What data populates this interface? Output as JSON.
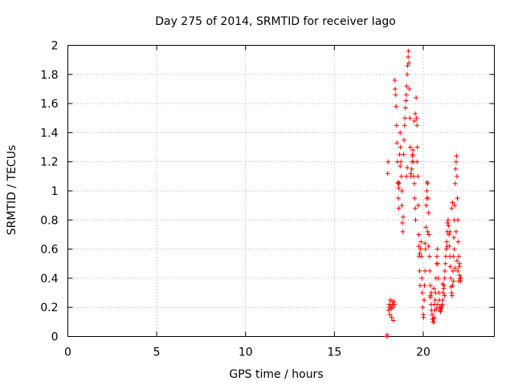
{
  "chart_data": {
    "type": "scatter",
    "title": "Day 275 of 2014, SRMTID for receiver Iago",
    "xlabel": "GPS time / hours",
    "ylabel": "SRMTID / TECUs",
    "xlim": [
      0,
      24
    ],
    "ylim": [
      0,
      2
    ],
    "xticks": [
      0,
      5,
      10,
      15,
      20
    ],
    "xtick_labels": [
      "0",
      "5",
      "10",
      "15",
      "20"
    ],
    "yticks": [
      0,
      0.2,
      0.4,
      0.6,
      0.8,
      1,
      1.2,
      1.4,
      1.6,
      1.8,
      2
    ],
    "ytick_labels": [
      "0",
      "0.2",
      "0.4",
      "0.6",
      "0.8",
      "1",
      "1.2",
      "1.4",
      "1.6",
      "1.8",
      "2"
    ],
    "grid": true,
    "marker": "plus",
    "color": "#ff0000",
    "series": [
      {
        "name": "SRMTID",
        "points": [
          [
            17.95,
            0.0
          ],
          [
            17.97,
            0.01
          ],
          [
            18.0,
            1.12
          ],
          [
            18.02,
            1.2
          ],
          [
            18.05,
            0.18
          ],
          [
            18.08,
            0.22
          ],
          [
            18.1,
            0.2
          ],
          [
            18.12,
            0.15
          ],
          [
            18.15,
            0.25
          ],
          [
            18.18,
            0.21
          ],
          [
            18.2,
            0.19
          ],
          [
            18.22,
            0.13
          ],
          [
            18.25,
            0.24
          ],
          [
            18.28,
            0.22
          ],
          [
            18.3,
            0.2
          ],
          [
            18.32,
            0.11
          ],
          [
            18.35,
            0.24
          ],
          [
            18.38,
            0.22
          ],
          [
            18.4,
            1.76
          ],
          [
            18.42,
            1.7
          ],
          [
            18.45,
            1.66
          ],
          [
            18.47,
            1.58
          ],
          [
            18.5,
            1.45
          ],
          [
            18.52,
            1.33
          ],
          [
            18.55,
            1.2
          ],
          [
            18.57,
            1.05
          ],
          [
            18.6,
            0.95
          ],
          [
            18.62,
            0.88
          ],
          [
            18.65,
            1.05
          ],
          [
            18.67,
            1.25
          ],
          [
            18.7,
            1.4
          ],
          [
            18.72,
            1.3
          ],
          [
            18.75,
            1.2
          ],
          [
            18.77,
            1.1
          ],
          [
            18.8,
            0.9
          ],
          [
            18.82,
            0.78
          ],
          [
            18.85,
            0.72
          ],
          [
            18.87,
            0.82
          ],
          [
            18.9,
            1.25
          ],
          [
            18.92,
            1.35
          ],
          [
            18.95,
            1.45
          ],
          [
            18.97,
            1.5
          ],
          [
            19.0,
            1.57
          ],
          [
            19.02,
            1.62
          ],
          [
            19.05,
            1.66
          ],
          [
            19.07,
            1.72
          ],
          [
            19.1,
            1.8
          ],
          [
            19.12,
            1.86
          ],
          [
            19.15,
            1.92
          ],
          [
            19.17,
            1.96
          ],
          [
            19.2,
            1.88
          ],
          [
            19.22,
            1.7
          ],
          [
            19.25,
            1.5
          ],
          [
            19.27,
            1.3
          ],
          [
            19.3,
            1.12
          ],
          [
            19.32,
            1.1
          ],
          [
            19.35,
            1.15
          ],
          [
            19.37,
            1.2
          ],
          [
            19.4,
            1.25
          ],
          [
            19.42,
            1.28
          ],
          [
            19.45,
            1.2
          ],
          [
            19.47,
            1.1
          ],
          [
            19.5,
            1.05
          ],
          [
            19.52,
            0.95
          ],
          [
            19.55,
            0.88
          ],
          [
            19.57,
            0.8
          ],
          [
            19.6,
            1.64
          ],
          [
            19.62,
            1.5
          ],
          [
            19.65,
            1.45
          ],
          [
            19.67,
            1.3
          ],
          [
            19.7,
            1.1
          ],
          [
            19.72,
            0.9
          ],
          [
            19.75,
            0.7
          ],
          [
            19.77,
            0.55
          ],
          [
            19.8,
            0.45
          ],
          [
            19.82,
            0.35
          ],
          [
            19.85,
            0.6
          ],
          [
            19.87,
            0.65
          ],
          [
            19.9,
            0.55
          ],
          [
            19.92,
            0.4
          ],
          [
            19.95,
            0.3
          ],
          [
            19.97,
            0.2
          ],
          [
            20.0,
            0.15
          ],
          [
            20.02,
            0.13
          ],
          [
            20.05,
            0.25
          ],
          [
            20.07,
            0.35
          ],
          [
            20.1,
            0.45
          ],
          [
            20.12,
            0.6
          ],
          [
            20.15,
            0.75
          ],
          [
            20.17,
            0.9
          ],
          [
            20.2,
            1.0
          ],
          [
            20.22,
            1.06
          ],
          [
            20.25,
            1.05
          ],
          [
            20.27,
            0.95
          ],
          [
            20.3,
            0.85
          ],
          [
            20.32,
            0.7
          ],
          [
            20.35,
            0.55
          ],
          [
            20.37,
            0.45
          ],
          [
            20.4,
            0.35
          ],
          [
            20.42,
            0.28
          ],
          [
            20.45,
            0.22
          ],
          [
            20.47,
            0.18
          ],
          [
            20.5,
            0.15
          ],
          [
            20.52,
            0.12
          ],
          [
            20.55,
            0.1
          ],
          [
            20.57,
            0.12
          ],
          [
            20.6,
            0.1
          ],
          [
            20.62,
            0.13
          ],
          [
            20.65,
            0.18
          ],
          [
            20.67,
            0.25
          ],
          [
            20.7,
            0.3
          ],
          [
            20.72,
            0.4
          ],
          [
            20.75,
            0.5
          ],
          [
            20.77,
            0.55
          ],
          [
            20.8,
            0.6
          ],
          [
            20.82,
            0.5
          ],
          [
            20.85,
            0.4
          ],
          [
            20.87,
            0.3
          ],
          [
            20.9,
            0.25
          ],
          [
            20.92,
            0.2
          ],
          [
            20.95,
            0.18
          ],
          [
            20.97,
            0.17
          ],
          [
            21.0,
            0.19
          ],
          [
            21.02,
            0.2
          ],
          [
            21.05,
            0.21
          ],
          [
            21.07,
            0.22
          ],
          [
            21.1,
            0.25
          ],
          [
            21.12,
            0.3
          ],
          [
            21.15,
            0.33
          ],
          [
            21.17,
            0.35
          ],
          [
            21.2,
            0.4
          ],
          [
            21.22,
            0.45
          ],
          [
            21.25,
            0.5
          ],
          [
            21.27,
            0.55
          ],
          [
            21.3,
            0.6
          ],
          [
            21.32,
            0.65
          ],
          [
            21.35,
            0.72
          ],
          [
            21.37,
            0.78
          ],
          [
            21.4,
            0.8
          ],
          [
            21.42,
            0.76
          ],
          [
            21.45,
            0.7
          ],
          [
            21.47,
            0.62
          ],
          [
            21.5,
            0.55
          ],
          [
            21.52,
            0.48
          ],
          [
            21.55,
            0.4
          ],
          [
            21.57,
            0.34
          ],
          [
            21.6,
            0.3
          ],
          [
            21.62,
            0.28
          ],
          [
            21.65,
            0.35
          ],
          [
            21.67,
            0.45
          ],
          [
            21.7,
            0.55
          ],
          [
            21.72,
            0.68
          ],
          [
            21.75,
            0.8
          ],
          [
            21.77,
            0.9
          ],
          [
            21.8,
            1.05
          ],
          [
            21.82,
            1.15
          ],
          [
            21.85,
            1.2
          ],
          [
            21.87,
            1.24
          ],
          [
            21.9,
            1.1
          ],
          [
            21.92,
            0.95
          ],
          [
            21.95,
            0.8
          ],
          [
            21.97,
            0.65
          ],
          [
            22.0,
            0.55
          ],
          [
            22.02,
            0.48
          ],
          [
            22.05,
            0.42
          ],
          [
            22.07,
            0.4
          ],
          [
            22.1,
            0.38
          ],
          [
            22.12,
            0.4
          ],
          [
            18.6,
            1.06
          ],
          [
            18.62,
            1.02
          ],
          [
            18.7,
            1.17
          ],
          [
            18.8,
            1.0
          ],
          [
            19.05,
            1.1
          ],
          [
            19.1,
            1.16
          ],
          [
            19.4,
            1.24
          ],
          [
            19.5,
            1.48
          ],
          [
            19.55,
            1.53
          ],
          [
            19.65,
            1.2
          ],
          [
            19.75,
            0.62
          ],
          [
            19.8,
            0.57
          ],
          [
            20.1,
            0.64
          ],
          [
            20.2,
            0.95
          ],
          [
            20.25,
            0.72
          ],
          [
            20.3,
            0.62
          ],
          [
            20.4,
            0.27
          ],
          [
            20.45,
            0.3
          ],
          [
            20.6,
            0.33
          ],
          [
            20.62,
            0.22
          ],
          [
            20.75,
            0.19
          ],
          [
            20.8,
            0.22
          ],
          [
            21.1,
            0.36
          ],
          [
            21.2,
            0.28
          ],
          [
            21.35,
            0.62
          ],
          [
            21.5,
            0.72
          ],
          [
            21.6,
            0.88
          ],
          [
            21.65,
            0.92
          ],
          [
            21.7,
            0.38
          ],
          [
            21.75,
            0.6
          ],
          [
            21.8,
            0.47
          ],
          [
            21.85,
            0.72
          ],
          [
            21.9,
            0.52
          ],
          [
            21.95,
            0.45
          ],
          [
            22.0,
            0.38
          ],
          [
            22.05,
            0.5
          ]
        ]
      }
    ]
  }
}
